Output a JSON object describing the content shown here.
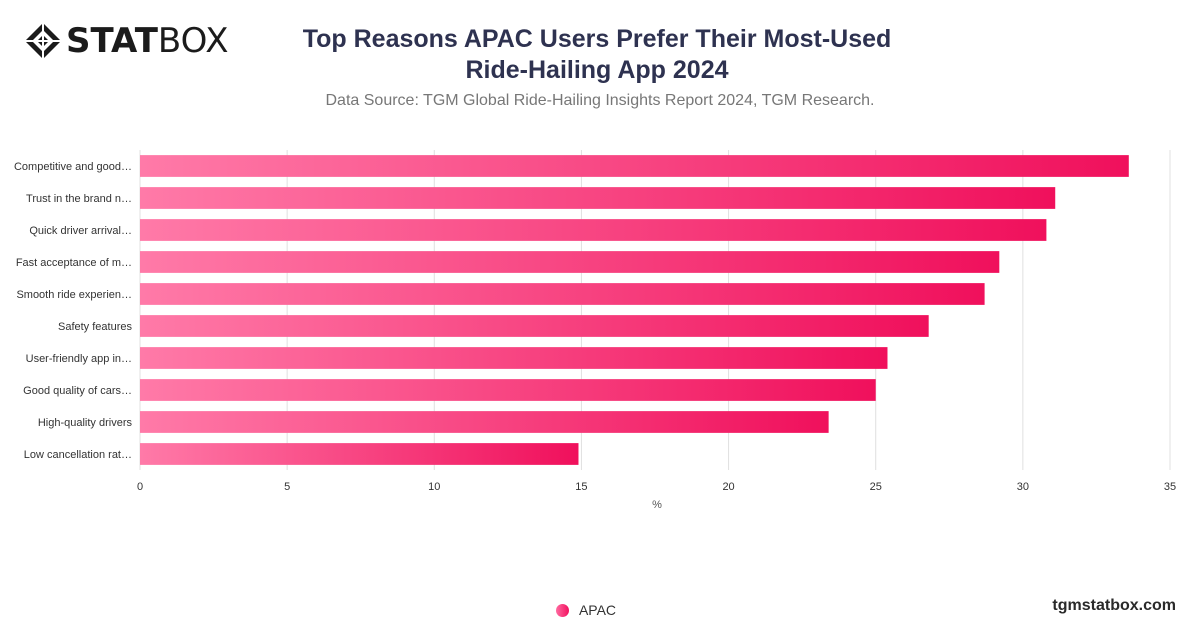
{
  "brand": {
    "logo_bold": "STAT",
    "logo_light": "BOX",
    "url": "tgmstatbox.com"
  },
  "header": {
    "title_line1": "Top Reasons APAC Users Prefer Their Most-Used",
    "title_line2": "Ride-Hailing App 2024",
    "subtitle": "Data Source: TGM Global Ride-Hailing Insights Report 2024, TGM Research."
  },
  "colors": {
    "bar_start": "#ff7aa8",
    "bar_end": "#f0105c",
    "grid": "#e0e0e0",
    "axis_text": "#333333"
  },
  "chart_data": {
    "type": "bar",
    "orientation": "horizontal",
    "categories": [
      "Competitive and good…",
      "Trust in the brand n…",
      "Quick driver arrival…",
      "Fast acceptance of m…",
      "Smooth ride experien…",
      "Safety features",
      "User-friendly app in…",
      "Good quality of cars…",
      "High-quality drivers",
      "Low cancellation rat…"
    ],
    "series": [
      {
        "name": "APAC",
        "values": [
          33.6,
          31.1,
          30.8,
          29.2,
          28.7,
          26.8,
          25.4,
          25.0,
          23.4,
          14.9
        ]
      }
    ],
    "xlabel": "%",
    "xlim": [
      0,
      35
    ],
    "xticks": [
      "0",
      "5",
      "10",
      "15",
      "20",
      "25",
      "30",
      "35"
    ],
    "grid": true,
    "legend": "bottom-center"
  },
  "legend": {
    "label": "APAC"
  }
}
